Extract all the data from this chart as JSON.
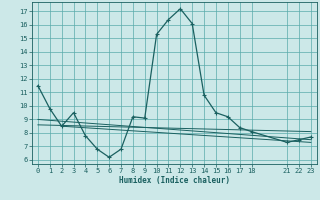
{
  "title": "",
  "xlabel": "Humidex (Indice chaleur)",
  "bg_color": "#cce8e8",
  "grid_color": "#5aabab",
  "line_color": "#1a6060",
  "xlim": [
    -0.5,
    23.5
  ],
  "ylim": [
    5.7,
    17.7
  ],
  "xticks": [
    0,
    1,
    2,
    3,
    4,
    5,
    6,
    7,
    8,
    9,
    10,
    11,
    12,
    13,
    14,
    15,
    16,
    17,
    18,
    21,
    22,
    23
  ],
  "yticks": [
    6,
    7,
    8,
    9,
    10,
    11,
    12,
    13,
    14,
    15,
    16,
    17
  ],
  "line1_x": [
    0,
    1,
    2,
    3,
    4,
    5,
    6,
    7,
    8,
    9,
    10,
    11,
    12,
    13,
    14,
    15,
    16,
    17,
    18,
    21,
    22,
    23
  ],
  "line1_y": [
    11.5,
    9.8,
    8.5,
    9.5,
    7.8,
    6.8,
    6.2,
    6.8,
    9.2,
    9.1,
    15.3,
    16.4,
    17.2,
    16.1,
    10.8,
    9.5,
    9.2,
    8.4,
    8.1,
    7.3,
    7.5,
    7.7
  ],
  "line2_x": [
    0,
    23
  ],
  "line2_y": [
    9.0,
    7.5
  ],
  "line3_x": [
    0,
    23
  ],
  "line3_y": [
    8.6,
    8.1
  ],
  "line4_x": [
    2,
    23
  ],
  "line4_y": [
    8.5,
    7.3
  ]
}
